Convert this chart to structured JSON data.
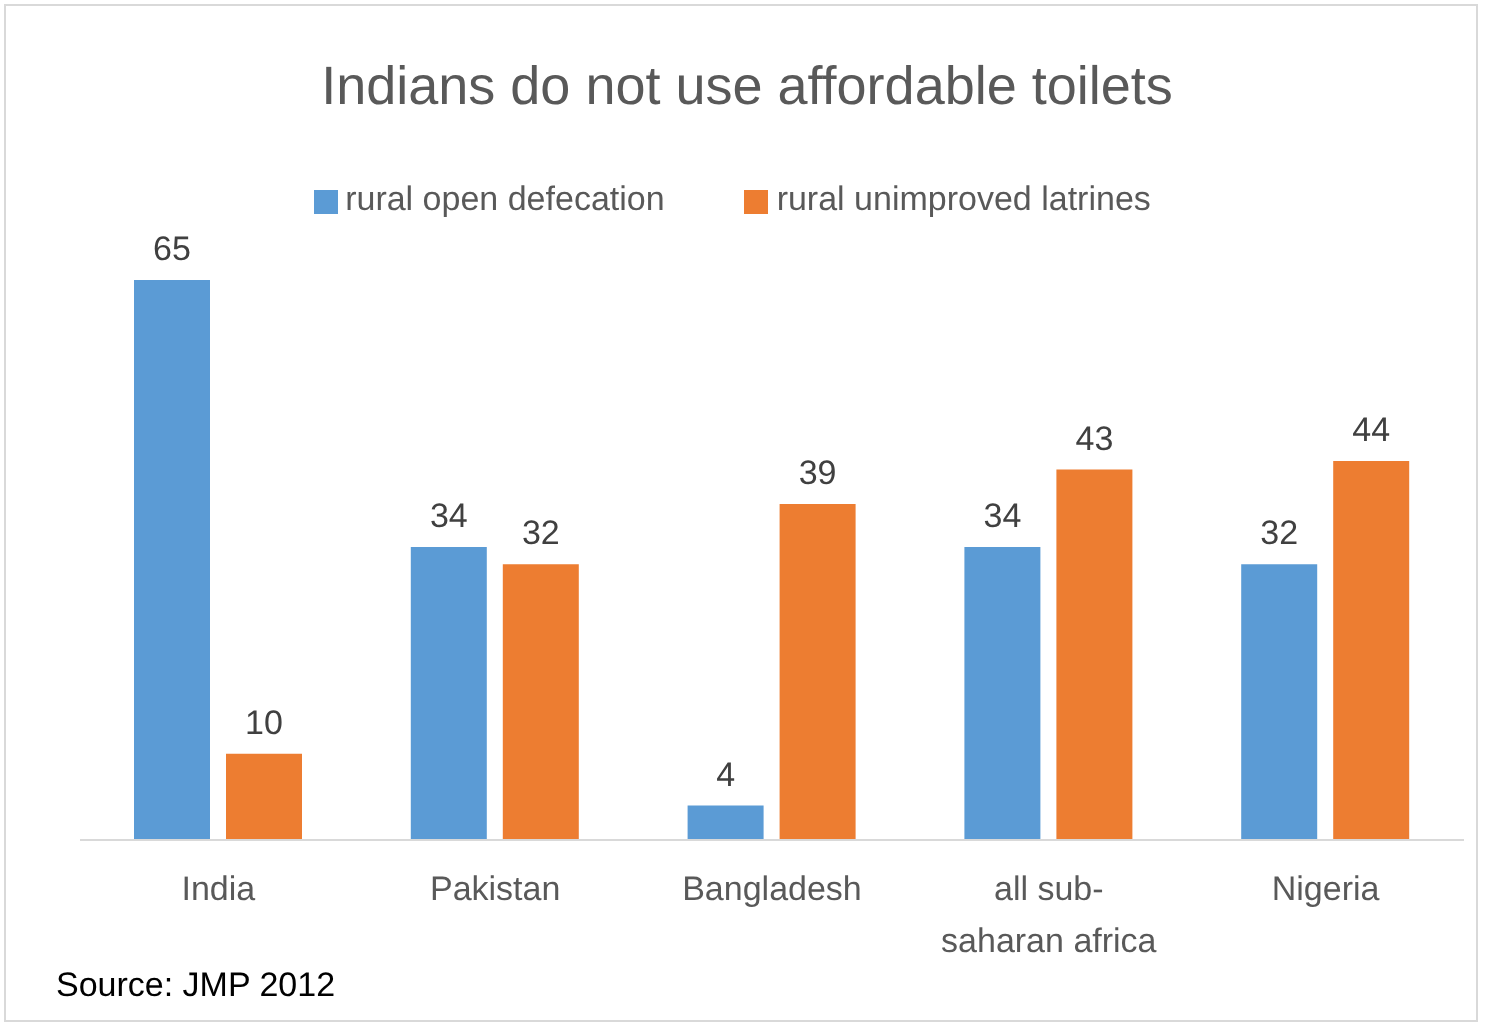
{
  "chart_data": {
    "type": "bar",
    "title": "Indians do not use affordable toilets",
    "categories": [
      "India",
      "Pakistan",
      "Bangladesh",
      "all sub-saharan africa",
      "Nigeria"
    ],
    "series": [
      {
        "name": "rural open defecation",
        "color": "#5b9bd5",
        "values": [
          65,
          34,
          4,
          34,
          32
        ]
      },
      {
        "name": "rural unimproved latrines",
        "color": "#ed7d31",
        "values": [
          10,
          32,
          39,
          43,
          44
        ]
      }
    ],
    "data_labels": true,
    "legend": "top",
    "annotations": [
      "Source: JMP 2012"
    ]
  }
}
